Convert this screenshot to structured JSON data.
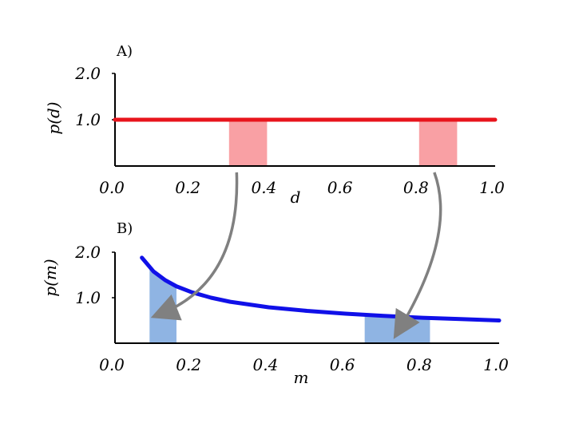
{
  "colors": {
    "uniform_line": "#e8141c",
    "uniform_fill": "#f9a0a4",
    "curve_line": "#1010e8",
    "curve_fill": "#8fb4e3",
    "arrow": "#808080",
    "axis": "#000000"
  },
  "chart_data": [
    {
      "type": "line",
      "panel_label": "A)",
      "xlabel": "d",
      "ylabel": "p(d)",
      "xlim": [
        0,
        1
      ],
      "ylim": [
        0,
        2
      ],
      "x_ticks": [
        "0.0",
        "0.2",
        "0.4",
        "0.6",
        "0.8",
        "1.0"
      ],
      "y_ticks": [
        "1.0",
        "2.0"
      ],
      "series": [
        {
          "x": [
            0,
            1
          ],
          "y": [
            1,
            1
          ]
        }
      ],
      "shaded_intervals": [
        [
          0.3,
          0.4
        ],
        [
          0.8,
          0.9
        ]
      ]
    },
    {
      "type": "line",
      "panel_label": "B)",
      "xlabel": "m",
      "ylabel": "p(m)",
      "xlim": [
        0,
        1
      ],
      "ylim": [
        0,
        2
      ],
      "x_ticks": [
        "0.0",
        "0.2",
        "0.4",
        "0.6",
        "0.8",
        "1.0"
      ],
      "y_ticks": [
        "1.0",
        "2.0"
      ],
      "series": [
        {
          "x": [
            0.07,
            0.1,
            0.13,
            0.16,
            0.2,
            0.25,
            0.3,
            0.4,
            0.5,
            0.6,
            0.7,
            0.8,
            0.9,
            1.0
          ],
          "y": [
            1.88,
            1.58,
            1.39,
            1.25,
            1.12,
            1.0,
            0.91,
            0.79,
            0.71,
            0.65,
            0.6,
            0.56,
            0.53,
            0.5
          ]
        }
      ],
      "shaded_intervals": [
        [
          0.09,
          0.16
        ],
        [
          0.65,
          0.82
        ]
      ]
    }
  ]
}
